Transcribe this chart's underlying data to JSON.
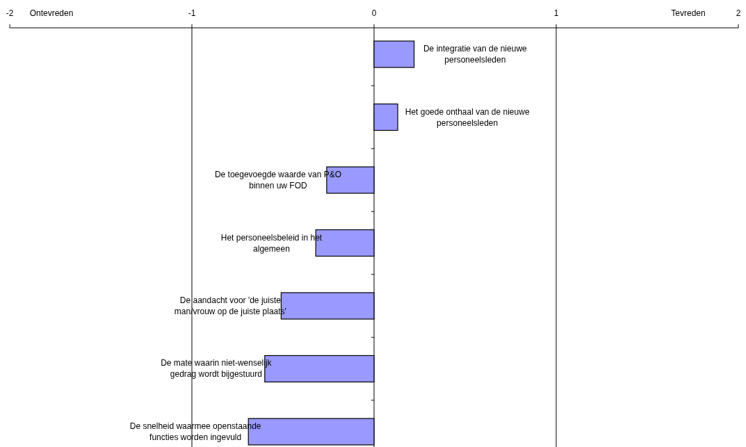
{
  "chart_data": {
    "type": "bar",
    "orientation": "horizontal",
    "categories": [
      "De integratie van de nieuwe personeelsleden",
      "Het goede onthaal van de nieuwe personeelsleden",
      "De toegevoegde waarde van P&O binnen uw FOD",
      "Het personeelsbeleid in het algemeen",
      "De aandacht voor 'de juiste man/vrouw op de juiste plaats'",
      "De mate waarin niet-wenselijk gedrag wordt bijgestuurd",
      "De snelheid waarmee openstaande functies worden ingevuld"
    ],
    "values": [
      0.22,
      0.13,
      -0.26,
      -0.32,
      -0.51,
      -0.6,
      -0.69
    ],
    "color": "#9999ff",
    "xlim": [
      -2,
      2
    ],
    "xticks": [
      -2,
      -1,
      0,
      1,
      2
    ],
    "annotations": [
      "Ontevreden",
      "Tevreden"
    ],
    "grid": "x"
  }
}
